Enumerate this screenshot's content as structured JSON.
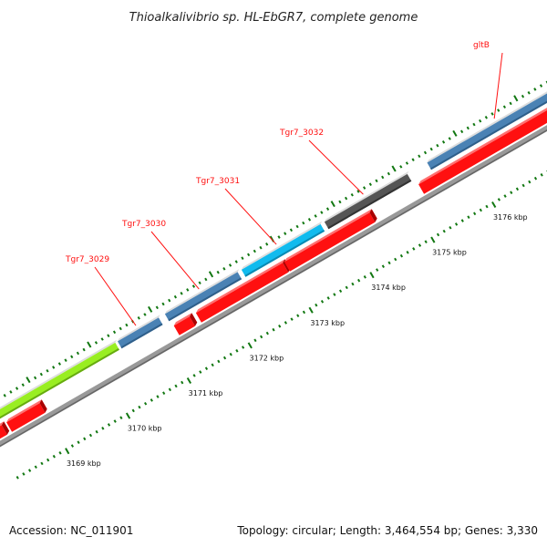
{
  "title": "Thioalkalivibrio sp. HL-EbGR7, complete genome",
  "footer": {
    "accession": "Accession: NC_011901",
    "summary": "Topology: circular; Length: 3,464,554 bp; Genes: 3,330"
  },
  "axis": {
    "unit": "kbp",
    "labeled_ticks": [
      "3169 kbp",
      "3170 kbp",
      "3171 kbp",
      "3172 kbp",
      "3173 kbp",
      "3174 kbp",
      "3175 kbp",
      "3176 kbp"
    ]
  },
  "colors": {
    "cds": "#ff1010",
    "default_gene": "#4a82b4",
    "highlight_green": "#99ee22",
    "highlight_cyan": "#11bbee",
    "dark_gene": "#555555",
    "backbone": "#999999",
    "tick": "#117711",
    "label": "#ff1010"
  },
  "genes": [
    {
      "label": "",
      "color": "#99ee22"
    },
    {
      "label": "Tgr7_3029",
      "color": "#4a82b4"
    },
    {
      "label": "Tgr7_3030",
      "color": "#4a82b4"
    },
    {
      "label": "Tgr7_3031",
      "color": "#11bbee"
    },
    {
      "label": "Tgr7_3032",
      "color": "#555555"
    },
    {
      "label": "gltB",
      "color": "#4a82b4"
    }
  ]
}
